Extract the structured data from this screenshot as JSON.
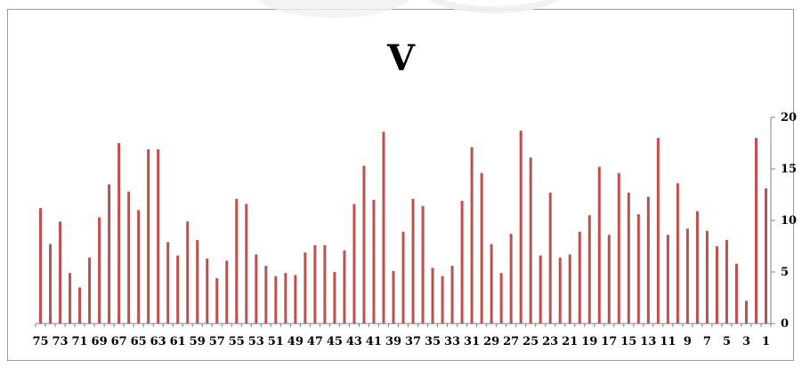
{
  "chart_data": {
    "type": "bar",
    "title": "V",
    "xlabel": "",
    "ylabel": "",
    "ylim": [
      0,
      20
    ],
    "y_ticks": [
      "0",
      "5",
      "10",
      "15",
      "20"
    ],
    "y_axis_side": "right",
    "bar_color": "#c0504d",
    "categories": [
      75,
      74,
      73,
      72,
      71,
      70,
      69,
      68,
      67,
      66,
      65,
      64,
      63,
      62,
      61,
      60,
      59,
      58,
      57,
      56,
      55,
      54,
      53,
      52,
      51,
      50,
      49,
      48,
      47,
      46,
      45,
      44,
      43,
      42,
      41,
      40,
      39,
      38,
      37,
      36,
      35,
      34,
      33,
      32,
      31,
      30,
      29,
      28,
      27,
      26,
      25,
      24,
      23,
      22,
      21,
      20,
      19,
      18,
      17,
      16,
      15,
      14,
      13,
      12,
      11,
      10,
      9,
      8,
      7,
      6,
      5,
      4,
      3,
      2,
      1
    ],
    "x_tick_labels": [
      "75",
      "73",
      "71",
      "69",
      "67",
      "65",
      "63",
      "61",
      "59",
      "57",
      "55",
      "53",
      "51",
      "49",
      "47",
      "45",
      "43",
      "41",
      "39",
      "37",
      "35",
      "33",
      "31",
      "29",
      "27",
      "25",
      "23",
      "21",
      "19",
      "17",
      "15",
      "13",
      "11",
      "9",
      "7",
      "5",
      "3",
      "1"
    ],
    "values": [
      11.2,
      7.7,
      9.9,
      4.9,
      3.5,
      6.4,
      10.3,
      13.5,
      17.5,
      12.8,
      11.0,
      16.9,
      16.9,
      7.9,
      6.6,
      9.9,
      8.1,
      6.3,
      4.4,
      6.1,
      12.1,
      11.6,
      6.7,
      5.6,
      4.6,
      4.9,
      4.7,
      6.9,
      7.6,
      7.6,
      5.0,
      7.1,
      11.6,
      15.3,
      12.0,
      18.6,
      5.1,
      8.9,
      12.1,
      11.4,
      5.4,
      4.6,
      5.6,
      11.9,
      17.1,
      14.6,
      7.7,
      4.9,
      8.7,
      18.7,
      16.1,
      6.6,
      12.7,
      6.4,
      6.7,
      8.9,
      10.5,
      15.2,
      8.6,
      14.6,
      12.7,
      10.6,
      12.3,
      18.0,
      8.6,
      13.6,
      9.2,
      10.9,
      9.0,
      7.5,
      8.1,
      5.8,
      2.2,
      18.0,
      13.1
    ]
  }
}
